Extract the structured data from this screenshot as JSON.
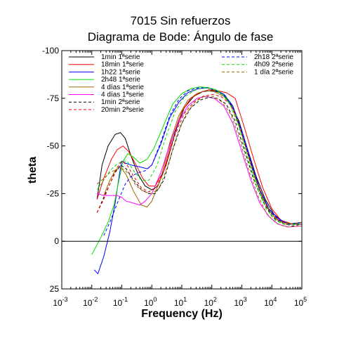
{
  "chart_data": {
    "type": "line",
    "title": "7015 Sin refuerzos",
    "subtitle": "Diagrama de Bode: Ángulo de fase",
    "xlabel": "Frequency (Hz)",
    "ylabel": "theta",
    "x_scale": "log",
    "xlim": [
      0.001,
      100000
    ],
    "ylim": [
      25,
      -100
    ],
    "x_ticks": [
      {
        "base": "10",
        "exp": "-3",
        "value": 0.001
      },
      {
        "base": "10",
        "exp": "-2",
        "value": 0.01
      },
      {
        "base": "10",
        "exp": "-1",
        "value": 0.1
      },
      {
        "base": "10",
        "exp": "0",
        "value": 1
      },
      {
        "base": "10",
        "exp": "1",
        "value": 10
      },
      {
        "base": "10",
        "exp": "2",
        "value": 100
      },
      {
        "base": "10",
        "exp": "3",
        "value": 1000
      },
      {
        "base": "10",
        "exp": "4",
        "value": 10000
      },
      {
        "base": "10",
        "exp": "5",
        "value": 100000
      }
    ],
    "y_ticks": [
      {
        "label": "-100",
        "value": -100
      },
      {
        "label": "-75",
        "value": -75
      },
      {
        "label": "-50",
        "value": -50
      },
      {
        "label": "-25",
        "value": -25
      },
      {
        "label": "0",
        "value": 0
      },
      {
        "label": "25",
        "value": 25
      }
    ],
    "zero_line": 0,
    "grid": false,
    "legend_left": [
      "1min 1ªserie",
      "18min 1ªserie",
      "1h22 1ªserie",
      "2h48 1ªserie",
      "4 días 1ªserie",
      "4 días 1ªserie",
      "1min 2ªserie",
      "20min 2ªserie"
    ],
    "legend_right": [
      "2h18 2ªserie",
      "4h09 2ªserie",
      "1 día 2ªserie"
    ],
    "series": [
      {
        "name": "1min 1ªserie",
        "color": "#000000",
        "dash": false,
        "points": [
          [
            0.015,
            -22
          ],
          [
            0.022,
            -40
          ],
          [
            0.035,
            -50
          ],
          [
            0.06,
            -56
          ],
          [
            0.09,
            -57
          ],
          [
            0.13,
            -54
          ],
          [
            0.2,
            -45
          ],
          [
            0.35,
            -35
          ],
          [
            0.6,
            -29
          ],
          [
            1,
            -27
          ],
          [
            1.6,
            -29
          ],
          [
            3,
            -40
          ],
          [
            6,
            -57
          ],
          [
            12,
            -70
          ],
          [
            25,
            -76
          ],
          [
            50,
            -78.5
          ],
          [
            100,
            -79
          ],
          [
            200,
            -78
          ],
          [
            400,
            -73
          ],
          [
            800,
            -63
          ],
          [
            1500,
            -49
          ],
          [
            3000,
            -34
          ],
          [
            6000,
            -22
          ],
          [
            12000,
            -14
          ],
          [
            25000,
            -10
          ],
          [
            50000,
            -9
          ],
          [
            100000,
            -10
          ]
        ]
      },
      {
        "name": "18min 1ªserie",
        "color": "#ff0000",
        "dash": false,
        "points": [
          [
            0.015,
            -22
          ],
          [
            0.025,
            -33
          ],
          [
            0.045,
            -43
          ],
          [
            0.07,
            -48
          ],
          [
            0.11,
            -50
          ],
          [
            0.17,
            -47
          ],
          [
            0.3,
            -40
          ],
          [
            0.5,
            -33
          ],
          [
            0.8,
            -29
          ],
          [
            1.3,
            -29
          ],
          [
            2.5,
            -37
          ],
          [
            5,
            -55
          ],
          [
            10,
            -68
          ],
          [
            20,
            -75
          ],
          [
            40,
            -78
          ],
          [
            80,
            -79.5
          ],
          [
            150,
            -79
          ],
          [
            300,
            -78
          ],
          [
            600,
            -75
          ],
          [
            1200,
            -60
          ],
          [
            2500,
            -43
          ],
          [
            5000,
            -28
          ],
          [
            10000,
            -17
          ],
          [
            20000,
            -11
          ],
          [
            50000,
            -9
          ],
          [
            100000,
            -9
          ]
        ]
      },
      {
        "name": "1h22 1ªserie",
        "color": "#0000ff",
        "dash": false,
        "points": [
          [
            0.012,
            15
          ],
          [
            0.016,
            17
          ],
          [
            0.025,
            8
          ],
          [
            0.04,
            -5
          ],
          [
            0.06,
            -20
          ],
          [
            0.085,
            -36
          ],
          [
            0.1,
            -42
          ],
          [
            0.13,
            -41
          ],
          [
            0.2,
            -40
          ],
          [
            0.4,
            -39
          ],
          [
            0.7,
            -38
          ],
          [
            1,
            -40
          ],
          [
            2,
            -51
          ],
          [
            4,
            -65
          ],
          [
            8,
            -73
          ],
          [
            16,
            -78
          ],
          [
            35,
            -80
          ],
          [
            70,
            -80.5
          ],
          [
            130,
            -79.5
          ],
          [
            260,
            -77
          ],
          [
            500,
            -71
          ],
          [
            1000,
            -58
          ],
          [
            2000,
            -42
          ],
          [
            4000,
            -27
          ],
          [
            8000,
            -17
          ],
          [
            16000,
            -12
          ],
          [
            35000,
            -9
          ],
          [
            100000,
            -9
          ]
        ]
      },
      {
        "name": "2h48 1ªserie",
        "color": "#00dd00",
        "dash": false,
        "points": [
          [
            0.01,
            7
          ],
          [
            0.02,
            -2
          ],
          [
            0.035,
            -10
          ],
          [
            0.055,
            -19
          ],
          [
            0.08,
            -32
          ],
          [
            0.11,
            -42
          ],
          [
            0.16,
            -46
          ],
          [
            0.25,
            -44
          ],
          [
            0.4,
            -41
          ],
          [
            0.7,
            -43
          ],
          [
            1.2,
            -49
          ],
          [
            2.5,
            -61
          ],
          [
            5,
            -72
          ],
          [
            10,
            -77.5
          ],
          [
            20,
            -80
          ],
          [
            40,
            -81
          ],
          [
            80,
            -80.5
          ],
          [
            160,
            -79
          ],
          [
            320,
            -75
          ],
          [
            650,
            -66
          ],
          [
            1300,
            -50
          ],
          [
            2600,
            -34
          ],
          [
            5000,
            -22
          ],
          [
            10000,
            -14
          ],
          [
            20000,
            -10
          ],
          [
            50000,
            -9
          ],
          [
            100000,
            -10
          ]
        ]
      },
      {
        "name": "4 días 1ªserie",
        "color": "#996600",
        "dash": false,
        "points": [
          [
            0.025,
            -24
          ],
          [
            0.04,
            -32
          ],
          [
            0.06,
            -37
          ],
          [
            0.09,
            -39
          ],
          [
            0.14,
            -35
          ],
          [
            0.25,
            -26
          ],
          [
            0.45,
            -19
          ],
          [
            0.7,
            -18
          ],
          [
            1,
            -21
          ],
          [
            2,
            -33
          ],
          [
            4,
            -52
          ],
          [
            8,
            -66
          ],
          [
            16,
            -74
          ],
          [
            32,
            -77.5
          ],
          [
            60,
            -79
          ],
          [
            120,
            -78.5
          ],
          [
            250,
            -76
          ],
          [
            500,
            -70
          ],
          [
            1000,
            -56
          ],
          [
            2000,
            -40
          ],
          [
            4000,
            -26
          ],
          [
            8000,
            -16
          ],
          [
            16000,
            -11
          ],
          [
            35000,
            -9
          ],
          [
            100000,
            -10
          ]
        ]
      },
      {
        "name": "4 días 1ªserie",
        "color": "#ff00ff",
        "dash": false,
        "points": [
          [
            0.015,
            -25
          ],
          [
            0.025,
            -24
          ],
          [
            0.04,
            -24
          ],
          [
            0.07,
            -24
          ],
          [
            0.1,
            -23
          ],
          [
            0.14,
            -21
          ],
          [
            0.25,
            -20
          ],
          [
            0.4,
            -19
          ],
          [
            0.6,
            -21
          ],
          [
            1,
            -25
          ],
          [
            2,
            -36
          ],
          [
            4,
            -51
          ],
          [
            8,
            -63
          ],
          [
            16,
            -71
          ],
          [
            32,
            -75
          ],
          [
            60,
            -76
          ],
          [
            120,
            -75
          ],
          [
            250,
            -71
          ],
          [
            500,
            -62
          ],
          [
            1000,
            -47
          ],
          [
            2000,
            -32
          ],
          [
            4000,
            -20
          ],
          [
            8000,
            -13
          ],
          [
            16000,
            -9
          ],
          [
            35000,
            -7.5
          ],
          [
            100000,
            -8
          ]
        ]
      },
      {
        "name": "1min 2ªserie",
        "color": "#000000",
        "dash": true,
        "points": [
          [
            0.015,
            -15
          ],
          [
            0.025,
            -23
          ],
          [
            0.04,
            -30
          ],
          [
            0.06,
            -36
          ],
          [
            0.09,
            -40
          ],
          [
            0.14,
            -38
          ],
          [
            0.25,
            -32
          ],
          [
            0.45,
            -27
          ],
          [
            0.8,
            -25
          ],
          [
            1.3,
            -25
          ],
          [
            2.5,
            -32
          ],
          [
            5,
            -48
          ],
          [
            10,
            -62
          ],
          [
            20,
            -70
          ],
          [
            40,
            -74
          ],
          [
            80,
            -75.5
          ],
          [
            150,
            -75
          ],
          [
            300,
            -72
          ],
          [
            600,
            -63
          ],
          [
            1200,
            -48
          ],
          [
            2400,
            -33
          ],
          [
            5000,
            -21
          ],
          [
            10000,
            -13
          ],
          [
            20000,
            -9.5
          ],
          [
            50000,
            -8
          ],
          [
            100000,
            -9
          ]
        ]
      },
      {
        "name": "20min 2ªserie",
        "color": "#ff0000",
        "dash": true,
        "points": [
          [
            0.015,
            -15
          ],
          [
            0.025,
            -22
          ],
          [
            0.04,
            -30
          ],
          [
            0.065,
            -38
          ],
          [
            0.1,
            -42
          ],
          [
            0.15,
            -40
          ],
          [
            0.25,
            -34
          ],
          [
            0.45,
            -28
          ],
          [
            0.8,
            -26
          ],
          [
            1.4,
            -28
          ],
          [
            3,
            -40
          ],
          [
            6,
            -56
          ],
          [
            12,
            -67
          ],
          [
            25,
            -73
          ],
          [
            50,
            -76
          ],
          [
            100,
            -77
          ],
          [
            200,
            -76
          ],
          [
            400,
            -72
          ],
          [
            800,
            -62
          ],
          [
            1600,
            -46
          ],
          [
            3200,
            -31
          ],
          [
            6500,
            -19
          ],
          [
            13000,
            -12
          ],
          [
            30000,
            -9
          ],
          [
            100000,
            -9
          ]
        ]
      },
      {
        "name": "2h18 2ªserie",
        "color": "#0000ff",
        "dash": true,
        "points": [
          [
            0.025,
            -3
          ],
          [
            0.04,
            -10
          ],
          [
            0.06,
            -17
          ],
          [
            0.09,
            -24
          ],
          [
            0.13,
            -30
          ],
          [
            0.2,
            -34
          ],
          [
            0.35,
            -36
          ],
          [
            0.6,
            -37
          ],
          [
            1,
            -40
          ],
          [
            2,
            -52
          ],
          [
            4,
            -66
          ],
          [
            8,
            -74.5
          ],
          [
            16,
            -79
          ],
          [
            35,
            -80.5
          ],
          [
            70,
            -80.5
          ],
          [
            140,
            -79
          ],
          [
            280,
            -76
          ],
          [
            550,
            -69
          ],
          [
            1100,
            -55
          ],
          [
            2200,
            -39
          ],
          [
            4500,
            -25
          ],
          [
            9000,
            -15.5
          ],
          [
            18000,
            -11
          ],
          [
            40000,
            -9
          ],
          [
            100000,
            -10
          ]
        ]
      },
      {
        "name": "4h09 2ªserie",
        "color": "#00dd00",
        "dash": true,
        "points": [
          [
            0.015,
            -27
          ],
          [
            0.025,
            -32
          ],
          [
            0.04,
            -37
          ],
          [
            0.065,
            -40
          ],
          [
            0.1,
            -42
          ],
          [
            0.15,
            -42
          ],
          [
            0.25,
            -37
          ],
          [
            0.45,
            -32
          ],
          [
            0.8,
            -32
          ],
          [
            1.5,
            -40
          ],
          [
            3,
            -55
          ],
          [
            6,
            -68
          ],
          [
            12,
            -75.5
          ],
          [
            25,
            -79
          ],
          [
            50,
            -80.5
          ],
          [
            100,
            -80
          ],
          [
            200,
            -78
          ],
          [
            400,
            -72
          ],
          [
            800,
            -60
          ],
          [
            1600,
            -43
          ],
          [
            3200,
            -28
          ],
          [
            6500,
            -17
          ],
          [
            13000,
            -11
          ],
          [
            30000,
            -8.5
          ],
          [
            100000,
            -9
          ]
        ]
      },
      {
        "name": "1 día 2ªserie",
        "color": "#996600",
        "dash": true,
        "points": [
          [
            0.015,
            -30
          ],
          [
            0.025,
            -33
          ],
          [
            0.04,
            -36
          ],
          [
            0.07,
            -38
          ],
          [
            0.11,
            -38
          ],
          [
            0.18,
            -35
          ],
          [
            0.3,
            -29
          ],
          [
            0.55,
            -26
          ],
          [
            1,
            -25
          ],
          [
            1.8,
            -28
          ],
          [
            3.5,
            -40
          ],
          [
            7,
            -56
          ],
          [
            14,
            -67
          ],
          [
            28,
            -73
          ],
          [
            55,
            -76
          ],
          [
            110,
            -76
          ],
          [
            220,
            -73
          ],
          [
            450,
            -66
          ],
          [
            900,
            -52
          ],
          [
            1800,
            -36
          ],
          [
            3600,
            -23
          ],
          [
            7000,
            -14
          ],
          [
            14000,
            -9.5
          ],
          [
            30000,
            -7.5
          ],
          [
            100000,
            -8
          ]
        ]
      }
    ]
  }
}
